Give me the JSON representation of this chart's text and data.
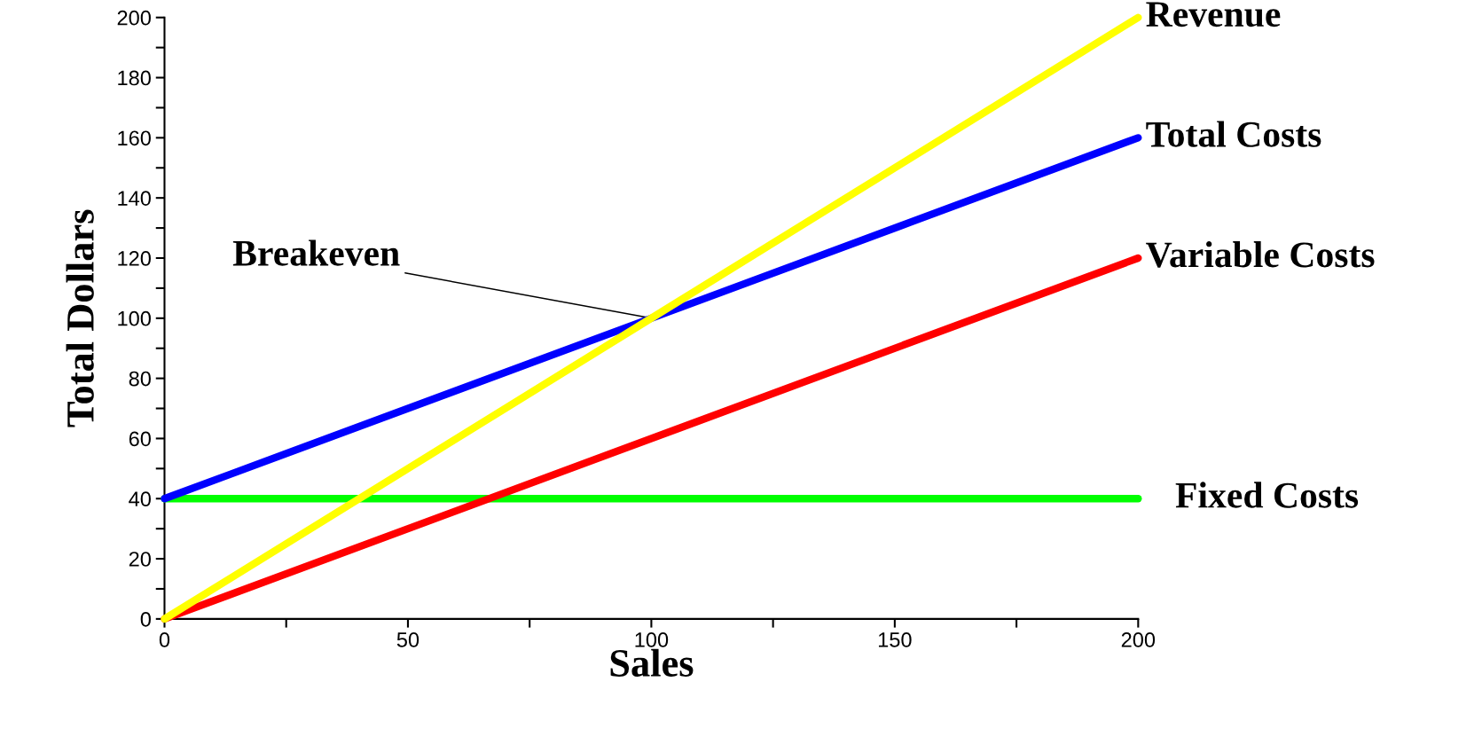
{
  "chart_data": {
    "type": "line",
    "xlabel": "Sales",
    "ylabel": "Total Dollars",
    "x": [
      0,
      200
    ],
    "series": [
      {
        "name": "Revenue",
        "color": "#ffff00",
        "values": [
          0,
          200
        ]
      },
      {
        "name": "Total Costs",
        "color": "#0000ff",
        "values": [
          40,
          160
        ]
      },
      {
        "name": "Variable Costs",
        "color": "#ff0000",
        "values": [
          0,
          120
        ]
      },
      {
        "name": "Fixed Costs",
        "color": "#00ff00",
        "values": [
          40,
          40
        ]
      }
    ],
    "annotations": [
      {
        "text": "Breakeven",
        "x": 100,
        "y": 100
      }
    ],
    "xlim": [
      0,
      200
    ],
    "ylim": [
      0,
      200
    ],
    "xticks": [
      0,
      {
        "value": 25,
        "label": null
      },
      50,
      {
        "value": 75,
        "label": null
      },
      100,
      {
        "value": 125,
        "label": null
      },
      150,
      {
        "value": 175,
        "label": null
      },
      200
    ],
    "yticks": [
      0,
      {
        "value": 10,
        "label": null
      },
      20,
      {
        "value": 30,
        "label": null
      },
      40,
      {
        "value": 50,
        "label": null
      },
      60,
      {
        "value": 70,
        "label": null
      },
      80,
      {
        "value": 90,
        "label": null
      },
      100,
      {
        "value": 110,
        "label": null
      },
      120,
      {
        "value": 130,
        "label": null
      },
      140,
      {
        "value": 150,
        "label": null
      },
      160,
      {
        "value": 170,
        "label": null
      },
      180,
      {
        "value": 190,
        "label": null
      },
      200
    ],
    "grid": false,
    "legend": false,
    "marker": "none",
    "line_style": "solid"
  }
}
